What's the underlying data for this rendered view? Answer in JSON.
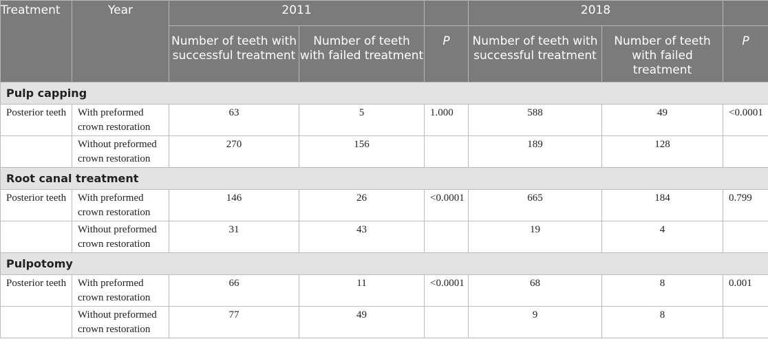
{
  "header": {
    "treatment": "Treatment",
    "year": "Year",
    "year_2011": "2011",
    "year_2018": "2018",
    "col_success": "Number of teeth with successful treatment",
    "col_failed": "Number of teeth with failed treatment",
    "col_p": "P"
  },
  "sections": [
    {
      "title": "Pulp capping",
      "rows": [
        {
          "group": "Posterior teeth",
          "condition": "With preformed crown restoration",
          "s2011": "63",
          "f2011": "5",
          "p2011": "1.000",
          "s2018": "588",
          "f2018": "49",
          "p2018": "<0.0001"
        },
        {
          "group": "",
          "condition": "Without preformed crown restoration",
          "s2011": "270",
          "f2011": "156",
          "p2011": "",
          "s2018": "189",
          "f2018": "128",
          "p2018": ""
        }
      ]
    },
    {
      "title": "Root canal treatment",
      "rows": [
        {
          "group": "Posterior teeth",
          "condition": "With preformed crown restoration",
          "s2011": "146",
          "f2011": "26",
          "p2011": "<0.0001",
          "s2018": "665",
          "f2018": "184",
          "p2018": "0.799"
        },
        {
          "group": "",
          "condition": "Without preformed crown restoration",
          "s2011": "31",
          "f2011": "43",
          "p2011": "",
          "s2018": "19",
          "f2018": "4",
          "p2018": ""
        }
      ]
    },
    {
      "title": "Pulpotomy",
      "rows": [
        {
          "group": "Posterior teeth",
          "condition": "With preformed crown restoration",
          "s2011": "66",
          "f2011": "11",
          "p2011": "<0.0001",
          "s2018": "68",
          "f2018": "8",
          "p2018": "0.001"
        },
        {
          "group": "",
          "condition": "Without preformed crown restoration",
          "s2011": "77",
          "f2011": "49",
          "p2011": "",
          "s2018": "9",
          "f2018": "8",
          "p2018": ""
        }
      ]
    }
  ]
}
